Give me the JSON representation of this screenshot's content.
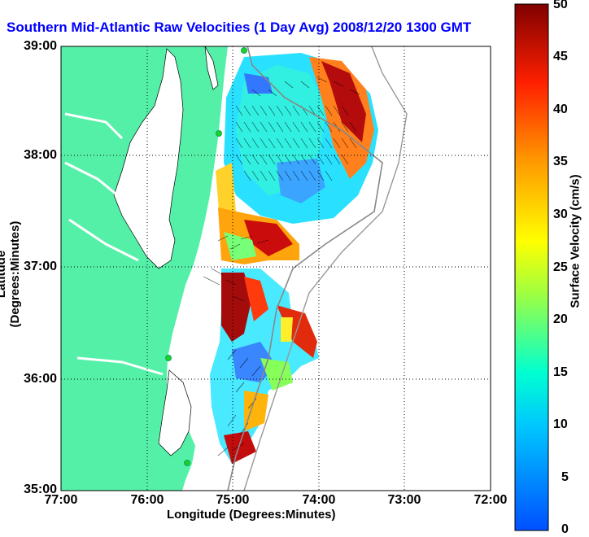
{
  "title": "Southern Mid-Atlantic Raw Velocities (1 Day Avg) 2008/12/20 1300 GMT",
  "map": {
    "xlabel": "Longitude (Degrees:Minutes)",
    "ylabel": "Latitude (Degrees:Minutes)",
    "lon_ticks": [
      "77:00",
      "76:00",
      "75:00",
      "74:00",
      "73:00",
      "72:00"
    ],
    "lat_ticks": [
      "39:00",
      "38:00",
      "37:00",
      "36:00",
      "35:00"
    ],
    "land_color": "#55f0a8",
    "grid": "dotted"
  },
  "colorbar": {
    "label": "Surface Velocity (cm/s)",
    "ticks": [
      "50",
      "45",
      "40",
      "35",
      "30",
      "25",
      "20",
      "15",
      "10",
      "5",
      "0"
    ],
    "range": [
      0,
      50
    ],
    "colormap": "jet"
  }
}
